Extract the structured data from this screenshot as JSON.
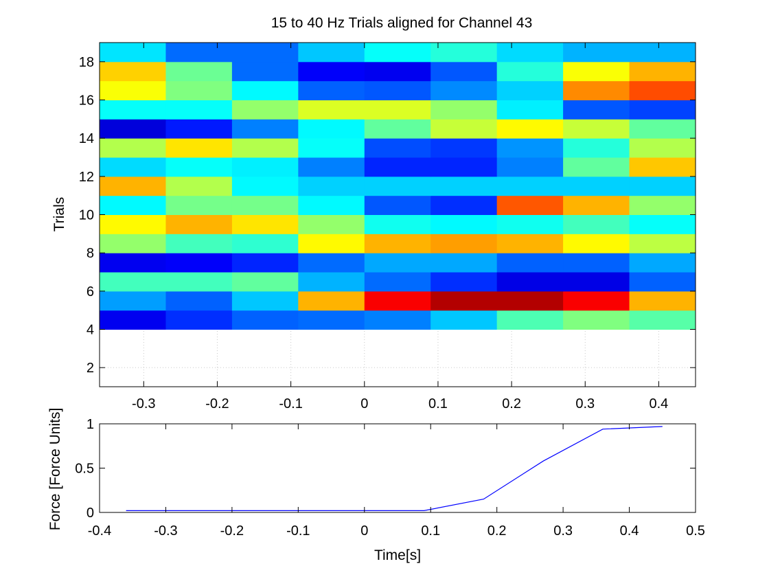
{
  "chart_data": [
    {
      "type": "heatmap",
      "title": "15 to 40 Hz Trials aligned for Channel 43",
      "xlabel": "",
      "ylabel": "Trials",
      "xlim": [
        -0.36,
        0.45
      ],
      "ylim": [
        1,
        19
      ],
      "grid": true,
      "x_ticks": [
        -0.3,
        -0.2,
        -0.1,
        0,
        0.1,
        0.2,
        0.3,
        0.4
      ],
      "x_tick_labels": [
        "-0.3",
        "-0.2",
        "-0.1",
        "0",
        "0.1",
        "0.2",
        "0.3",
        "0.4"
      ],
      "y_ticks": [
        2,
        4,
        6,
        8,
        10,
        12,
        14,
        16,
        18
      ],
      "y_tick_labels": [
        "2",
        "4",
        "6",
        "8",
        "10",
        "12",
        "14",
        "16",
        "18"
      ],
      "x_edges": [
        -0.36,
        -0.27,
        -0.18,
        -0.09,
        0,
        0.09,
        0.18,
        0.27,
        0.36,
        0.45
      ],
      "y_edges": [
        4,
        5,
        6,
        7,
        8,
        9,
        10,
        11,
        12,
        13,
        14,
        15,
        16,
        17,
        18,
        19
      ],
      "color_scale": [
        0,
        1
      ],
      "values": [
        [
          0.11,
          0.17,
          0.22,
          0.23,
          0.25,
          0.32,
          0.45,
          0.5,
          0.46
        ],
        [
          0.28,
          0.22,
          0.32,
          0.7,
          0.88,
          0.95,
          0.95,
          0.88,
          0.7
        ],
        [
          0.44,
          0.44,
          0.47,
          0.3,
          0.23,
          0.17,
          0.1,
          0.1,
          0.22
        ],
        [
          0.11,
          0.12,
          0.16,
          0.23,
          0.29,
          0.29,
          0.22,
          0.22,
          0.29
        ],
        [
          0.52,
          0.44,
          0.42,
          0.63,
          0.7,
          0.72,
          0.7,
          0.63,
          0.56
        ],
        [
          0.63,
          0.7,
          0.65,
          0.52,
          0.39,
          0.37,
          0.39,
          0.44,
          0.38
        ],
        [
          0.37,
          0.49,
          0.49,
          0.37,
          0.21,
          0.17,
          0.79,
          0.7,
          0.52
        ],
        [
          0.7,
          0.55,
          0.37,
          0.33,
          0.33,
          0.33,
          0.33,
          0.33,
          0.33
        ],
        [
          0.34,
          0.38,
          0.36,
          0.25,
          0.16,
          0.16,
          0.25,
          0.47,
          0.68
        ],
        [
          0.55,
          0.65,
          0.55,
          0.38,
          0.2,
          0.18,
          0.27,
          0.41,
          0.55
        ],
        [
          0.09,
          0.15,
          0.25,
          0.37,
          0.47,
          0.57,
          0.63,
          0.57,
          0.47
        ],
        [
          0.38,
          0.38,
          0.52,
          0.59,
          0.59,
          0.52,
          0.36,
          0.21,
          0.19
        ],
        [
          0.62,
          0.5,
          0.37,
          0.22,
          0.21,
          0.26,
          0.33,
          0.74,
          0.8
        ],
        [
          0.67,
          0.48,
          0.23,
          0.12,
          0.11,
          0.21,
          0.41,
          0.62,
          0.7
        ],
        [
          0.35,
          0.23,
          0.23,
          0.32,
          0.38,
          0.41,
          0.34,
          0.3,
          0.3
        ]
      ]
    },
    {
      "type": "line",
      "title": "",
      "xlabel": "Time[s]",
      "ylabel": "Force [Force Units]",
      "xlim": [
        -0.4,
        0.5
      ],
      "ylim": [
        0,
        1
      ],
      "grid": false,
      "x_ticks": [
        -0.4,
        -0.3,
        -0.2,
        -0.1,
        0,
        0.1,
        0.2,
        0.3,
        0.4,
        0.5
      ],
      "x_tick_labels": [
        "-0.4",
        "-0.3",
        "-0.2",
        "-0.1",
        "0",
        "0.1",
        "0.2",
        "0.3",
        "0.4",
        "0.5"
      ],
      "y_ticks": [
        0,
        0.5,
        1
      ],
      "y_tick_labels": [
        "0",
        "0.5",
        "1"
      ],
      "line_color": "#0000ff",
      "x": [
        -0.36,
        -0.27,
        -0.18,
        -0.09,
        0,
        0.09,
        0.18,
        0.27,
        0.36,
        0.45
      ],
      "y": [
        0.02,
        0.02,
        0.02,
        0.02,
        0.02,
        0.02,
        0.15,
        0.58,
        0.94,
        0.97
      ]
    }
  ]
}
